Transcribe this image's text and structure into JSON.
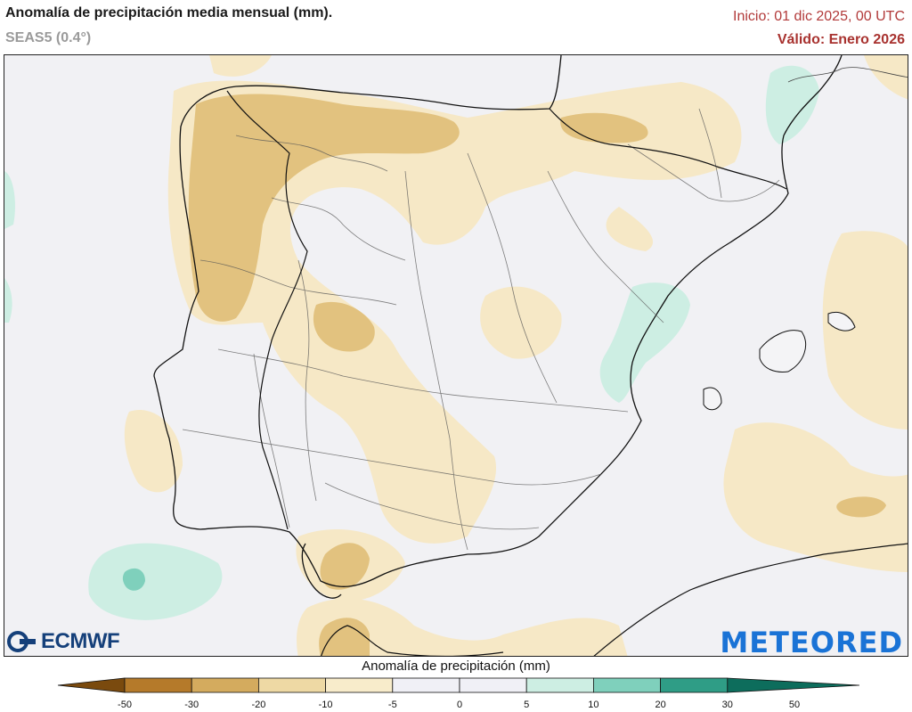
{
  "header": {
    "title": "Anomalía de precipitación media mensual (mm).",
    "subtitle": "SEAS5 (0.4°)",
    "init": "Inicio: 01 dic 2025, 00 UTC",
    "valid": "Válido: Enero 2026"
  },
  "logos": {
    "left": "ECMWF",
    "right": "METEORED"
  },
  "legend": {
    "title": "Anomalía de precipitación (mm)",
    "ticks": [
      "-50",
      "-30",
      "-20",
      "-10",
      "-5",
      "0",
      "5",
      "10",
      "20",
      "30",
      "50"
    ],
    "colors": [
      "#7a4a0e",
      "#b57a2a",
      "#d4ab5e",
      "#eed9a4",
      "#f8eccb",
      "#f0f0f6",
      "#f0f0f6",
      "#cdeee3",
      "#7fd0bc",
      "#2f9d86",
      "#0d6d5c"
    ]
  },
  "colors": {
    "background": "#f1f1f4",
    "init_text": "#b23a3a",
    "valid_text": "#a8322f",
    "meteored": "#1a73d6",
    "ecmwf": "#15407a"
  }
}
